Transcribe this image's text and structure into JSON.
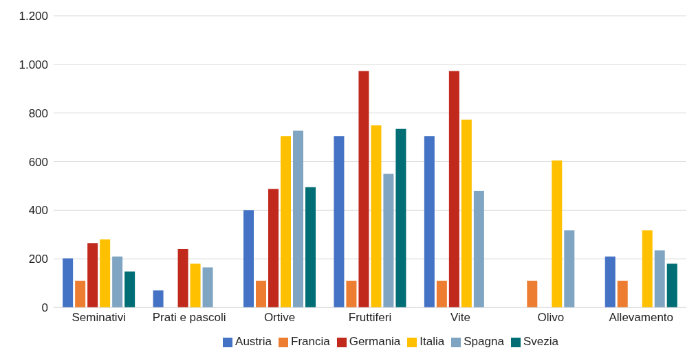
{
  "chart_data": {
    "type": "bar",
    "categories": [
      "Seminativi",
      "Prati  e pascoli",
      "Ortive",
      "Fruttiferi",
      "Vite",
      "Olivo",
      "Allevamento"
    ],
    "series": [
      {
        "name": "Austria",
        "color": "#4472c4",
        "values": [
          202,
          70,
          400,
          705,
          705,
          null,
          210
        ]
      },
      {
        "name": "Francia",
        "color": "#ed7d31",
        "values": [
          110,
          null,
          110,
          110,
          110,
          110,
          110
        ]
      },
      {
        "name": "Germania",
        "color": "#c0291c",
        "values": [
          265,
          240,
          488,
          973,
          973,
          null,
          null
        ]
      },
      {
        "name": "Italia",
        "color": "#ffc000",
        "values": [
          280,
          180,
          705,
          750,
          772,
          605,
          318
        ]
      },
      {
        "name": "Spagna",
        "color": "#7fa5c3",
        "values": [
          210,
          165,
          727,
          550,
          480,
          318,
          235
        ]
      },
      {
        "name": "Svezia",
        "color": "#006e74",
        "values": [
          148,
          null,
          495,
          735,
          null,
          null,
          180
        ]
      }
    ],
    "ylim": [
      0,
      1200
    ],
    "yticks": [
      0,
      200,
      400,
      600,
      800,
      {
        "value": 1000,
        "label": "1.000"
      },
      {
        "value": 1200,
        "label": "1.200"
      }
    ],
    "grid": "y",
    "legend": "bottom"
  }
}
